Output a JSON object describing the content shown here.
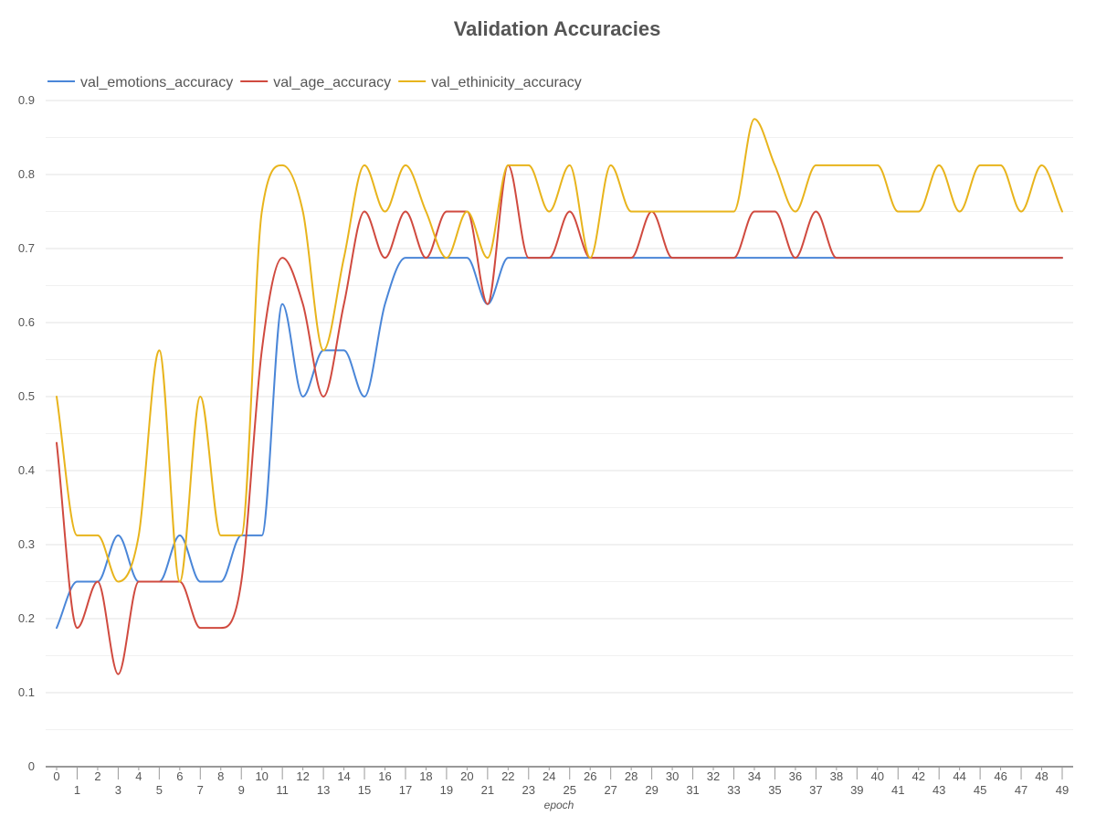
{
  "chart_data": {
    "type": "line",
    "title": "Validation Accuracies",
    "xlabel": "epoch",
    "ylabel": "",
    "ylim": [
      0,
      0.9
    ],
    "yticks": [
      0,
      0.1,
      0.2,
      0.3,
      0.4,
      0.5,
      0.6,
      0.7,
      0.8,
      0.9
    ],
    "ytick_labels": [
      "0",
      "0.1",
      "0.2",
      "0.3",
      "0.4",
      "0.5",
      "0.6",
      "0.7",
      "0.8",
      "0.9"
    ],
    "grid": true,
    "legend_position": "top-left",
    "x": [
      0,
      1,
      2,
      3,
      4,
      5,
      6,
      7,
      8,
      9,
      10,
      11,
      12,
      13,
      14,
      15,
      16,
      17,
      18,
      19,
      20,
      21,
      22,
      23,
      24,
      25,
      26,
      27,
      28,
      29,
      30,
      31,
      32,
      33,
      34,
      35,
      36,
      37,
      38,
      39,
      40,
      41,
      42,
      43,
      44,
      45,
      46,
      47,
      48,
      49
    ],
    "x_tick_labels": [
      "0",
      "1",
      "2",
      "3",
      "4",
      "5",
      "6",
      "7",
      "8",
      "9",
      "10",
      "11",
      "12",
      "13",
      "14",
      "15",
      "16",
      "17",
      "18",
      "19",
      "20",
      "21",
      "22",
      "23",
      "24",
      "25",
      "26",
      "27",
      "28",
      "29",
      "30",
      "31",
      "32",
      "33",
      "34",
      "35",
      "36",
      "37",
      "38",
      "39",
      "40",
      "41",
      "42",
      "43",
      "44",
      "45",
      "46",
      "47",
      "48",
      "49"
    ],
    "series": [
      {
        "name": "val_emotions_accuracy",
        "color": "#4a86d8",
        "values": [
          0.1875,
          0.25,
          0.25,
          0.3125,
          0.25,
          0.25,
          0.3125,
          0.25,
          0.25,
          0.3125,
          0.3125,
          0.625,
          0.5,
          0.5625,
          0.5625,
          0.5,
          0.625,
          0.6875,
          0.6875,
          0.6875,
          0.6875,
          0.625,
          0.6875,
          0.6875,
          0.6875,
          0.6875,
          0.6875,
          0.6875,
          0.6875,
          0.6875,
          0.6875,
          0.6875,
          0.6875,
          0.6875,
          0.6875,
          0.6875,
          0.6875,
          0.6875,
          0.6875,
          0.6875,
          0.6875,
          0.6875,
          0.6875,
          0.6875,
          0.6875,
          0.6875,
          0.6875,
          0.6875,
          0.6875,
          0.6875
        ]
      },
      {
        "name": "val_age_accuracy",
        "color": "#d04a3f",
        "values": [
          0.4375,
          0.1875,
          0.25,
          0.125,
          0.25,
          0.25,
          0.25,
          0.1875,
          0.1875,
          0.25,
          0.5625,
          0.6875,
          0.625,
          0.5,
          0.625,
          0.75,
          0.6875,
          0.75,
          0.6875,
          0.75,
          0.75,
          0.625,
          0.8125,
          0.6875,
          0.6875,
          0.75,
          0.6875,
          0.6875,
          0.6875,
          0.75,
          0.6875,
          0.6875,
          0.6875,
          0.6875,
          0.75,
          0.75,
          0.6875,
          0.75,
          0.6875,
          0.6875,
          0.6875,
          0.6875,
          0.6875,
          0.6875,
          0.6875,
          0.6875,
          0.6875,
          0.6875,
          0.6875,
          0.6875
        ]
      },
      {
        "name": "val_ethinicity_accuracy",
        "color": "#e8b41c",
        "values": [
          0.5,
          0.3125,
          0.3125,
          0.25,
          0.3125,
          0.5625,
          0.25,
          0.5,
          0.3125,
          0.3125,
          0.75,
          0.8125,
          0.75,
          0.5625,
          0.6875,
          0.8125,
          0.75,
          0.8125,
          0.75,
          0.6875,
          0.75,
          0.6875,
          0.8125,
          0.8125,
          0.75,
          0.8125,
          0.6875,
          0.8125,
          0.75,
          0.75,
          0.75,
          0.75,
          0.75,
          0.75,
          0.875,
          0.8125,
          0.75,
          0.8125,
          0.8125,
          0.8125,
          0.8125,
          0.75,
          0.75,
          0.8125,
          0.75,
          0.8125,
          0.8125,
          0.75,
          0.8125,
          0.75
        ]
      }
    ]
  }
}
